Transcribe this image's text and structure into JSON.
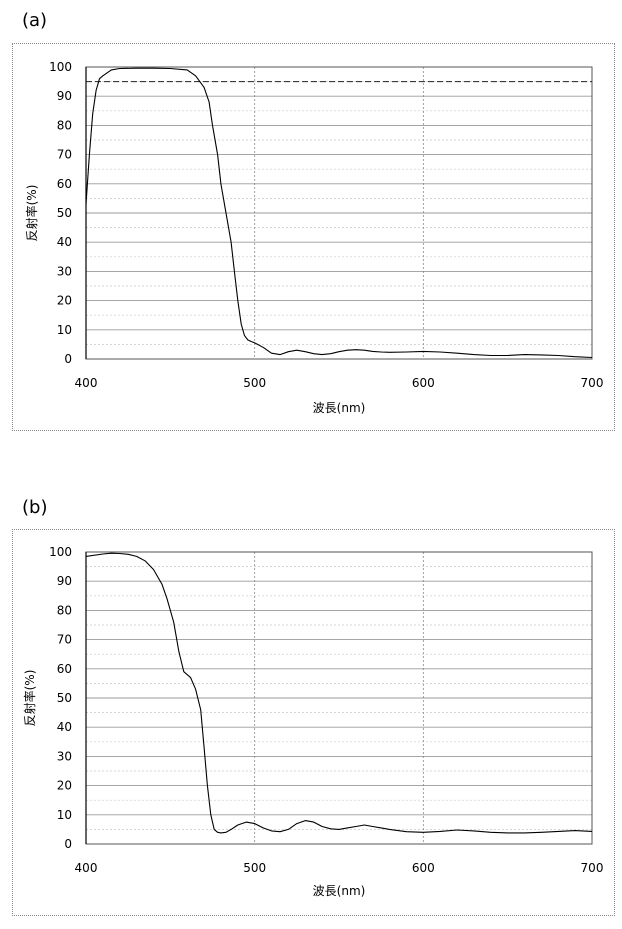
{
  "chart_data": [
    {
      "panel": "(a)",
      "type": "line",
      "xlabel": "波長(nm)",
      "ylabel": "反射率(%)",
      "xlim": [
        400,
        700
      ],
      "ylim": [
        0,
        100
      ],
      "x_ticks": [
        "400",
        "500",
        "600",
        "700"
      ],
      "y_ticks": [
        "0",
        "10",
        "20",
        "30",
        "40",
        "50",
        "60",
        "70",
        "80",
        "90",
        "100"
      ],
      "reference_line": 95,
      "series": [
        {
          "name": "reflectance",
          "x": [
            400,
            402,
            404,
            406,
            408,
            410,
            415,
            420,
            430,
            440,
            450,
            460,
            465,
            470,
            473,
            475,
            478,
            480,
            483,
            486,
            488,
            490,
            492,
            494,
            496,
            498,
            500,
            505,
            510,
            515,
            520,
            525,
            530,
            535,
            540,
            545,
            550,
            555,
            560,
            565,
            570,
            575,
            580,
            590,
            600,
            610,
            620,
            630,
            640,
            650,
            660,
            670,
            680,
            690,
            700
          ],
          "y": [
            53,
            70,
            84,
            92,
            96,
            97,
            99,
            99.5,
            99.6,
            99.6,
            99.5,
            99,
            97,
            93,
            88,
            80,
            70,
            60,
            50,
            40,
            30,
            20,
            12,
            8,
            6.5,
            6,
            5.5,
            4,
            2,
            1.5,
            2.5,
            3,
            2.5,
            1.8,
            1.5,
            1.8,
            2.5,
            3,
            3.2,
            3,
            2.6,
            2.4,
            2.3,
            2.4,
            2.6,
            2.4,
            2,
            1.5,
            1.2,
            1.2,
            1.5,
            1.4,
            1.2,
            0.8,
            0.5
          ]
        }
      ]
    },
    {
      "panel": "(b)",
      "type": "line",
      "xlabel": "波長(nm)",
      "ylabel": "反射率(%)",
      "xlim": [
        400,
        700
      ],
      "ylim": [
        0,
        100
      ],
      "x_ticks": [
        "400",
        "500",
        "600",
        "700"
      ],
      "y_ticks": [
        "0",
        "10",
        "20",
        "30",
        "40",
        "50",
        "60",
        "70",
        "80",
        "90",
        "100"
      ],
      "series": [
        {
          "name": "reflectance",
          "x": [
            400,
            410,
            415,
            420,
            425,
            430,
            435,
            440,
            445,
            448,
            452,
            455,
            458,
            462,
            465,
            468,
            470,
            472,
            474,
            476,
            478,
            480,
            483,
            486,
            490,
            495,
            500,
            505,
            510,
            515,
            520,
            525,
            530,
            535,
            540,
            545,
            550,
            555,
            560,
            565,
            570,
            575,
            580,
            590,
            600,
            610,
            620,
            630,
            640,
            650,
            660,
            670,
            680,
            690,
            700
          ],
          "y": [
            98.5,
            99.3,
            99.6,
            99.5,
            99.2,
            98.5,
            97,
            94,
            89,
            84,
            76,
            66,
            59,
            57,
            53,
            46,
            33,
            20,
            10,
            5,
            4,
            3.8,
            4,
            5,
            6.5,
            7.5,
            7,
            5.5,
            4.5,
            4.2,
            5,
            7,
            8,
            7.5,
            6,
            5.2,
            5,
            5.5,
            6,
            6.5,
            6,
            5.5,
            5,
            4.2,
            4,
            4.3,
            4.8,
            4.5,
            4,
            3.8,
            3.8,
            4,
            4.3,
            4.6,
            4.3
          ]
        }
      ]
    }
  ]
}
